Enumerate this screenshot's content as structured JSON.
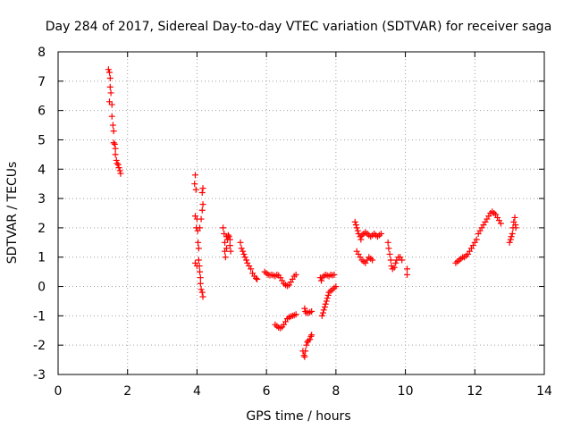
{
  "chart_data": {
    "type": "scatter",
    "title": "Day 284 of 2017, Sidereal Day-to-day VTEC variation (SDTVAR) for receiver saga",
    "xlabel": "GPS time / hours",
    "ylabel": "SDTVAR / TECUs",
    "xlim": [
      0,
      14
    ],
    "ylim": [
      -3,
      8
    ],
    "xticks": [
      0,
      2,
      4,
      6,
      8,
      10,
      12,
      14
    ],
    "yticks": [
      -3,
      -2,
      -1,
      0,
      1,
      2,
      3,
      4,
      5,
      6,
      7,
      8
    ],
    "grid": true,
    "marker": "+",
    "color": "#ff0000",
    "segments": [
      [
        [
          1.45,
          7.4
        ],
        [
          1.48,
          7.3
        ],
        [
          1.5,
          7.1
        ],
        [
          1.5,
          6.8
        ],
        [
          1.52,
          6.6
        ],
        [
          1.48,
          6.3
        ],
        [
          1.55,
          6.2
        ],
        [
          1.55,
          5.8
        ],
        [
          1.58,
          5.5
        ],
        [
          1.6,
          5.3
        ],
        [
          1.6,
          4.9
        ],
        [
          1.63,
          4.85
        ],
        [
          1.65,
          4.7
        ],
        [
          1.65,
          4.5
        ],
        [
          1.68,
          4.3
        ],
        [
          1.7,
          4.2
        ],
        [
          1.73,
          4.15
        ],
        [
          1.75,
          4.05
        ],
        [
          1.78,
          3.95
        ],
        [
          1.8,
          3.85
        ]
      ],
      [
        [
          3.95,
          3.8
        ],
        [
          3.93,
          3.5
        ],
        [
          3.97,
          3.3
        ],
        [
          3.95,
          2.4
        ],
        [
          4.0,
          2.3
        ],
        [
          3.98,
          2.0
        ],
        [
          4.02,
          1.9
        ],
        [
          4.03,
          1.5
        ],
        [
          4.05,
          1.3
        ],
        [
          3.95,
          0.8
        ],
        [
          4.0,
          0.7
        ],
        [
          4.05,
          0.9
        ],
        [
          4.07,
          0.7
        ],
        [
          4.08,
          0.5
        ],
        [
          4.1,
          0.3
        ],
        [
          4.1,
          0.1
        ],
        [
          4.12,
          -0.1
        ],
        [
          4.15,
          -0.2
        ],
        [
          4.17,
          -0.35
        ],
        [
          4.08,
          2.0
        ],
        [
          4.12,
          2.3
        ],
        [
          4.15,
          2.6
        ],
        [
          4.17,
          2.8
        ],
        [
          4.15,
          3.2
        ],
        [
          4.17,
          3.35
        ]
      ],
      [
        [
          4.75,
          2.0
        ],
        [
          4.78,
          1.8
        ],
        [
          4.8,
          1.5
        ],
        [
          4.8,
          1.2
        ],
        [
          4.82,
          1.0
        ],
        [
          4.85,
          1.7
        ],
        [
          4.88,
          1.6
        ],
        [
          4.9,
          1.75
        ],
        [
          4.92,
          1.7
        ],
        [
          4.95,
          1.6
        ],
        [
          4.95,
          1.4
        ],
        [
          4.97,
          1.2
        ],
        [
          4.85,
          1.3
        ]
      ],
      [
        [
          5.25,
          1.5
        ],
        [
          5.28,
          1.3
        ],
        [
          5.32,
          1.2
        ],
        [
          5.35,
          1.1
        ],
        [
          5.38,
          1.0
        ],
        [
          5.42,
          0.9
        ],
        [
          5.45,
          0.8
        ],
        [
          5.5,
          0.7
        ],
        [
          5.55,
          0.6
        ],
        [
          5.6,
          0.45
        ],
        [
          5.65,
          0.35
        ],
        [
          5.7,
          0.28
        ],
        [
          5.73,
          0.25
        ]
      ],
      [
        [
          5.95,
          0.5
        ],
        [
          6.0,
          0.45
        ],
        [
          6.05,
          0.4
        ],
        [
          6.1,
          0.38
        ],
        [
          6.15,
          0.4
        ],
        [
          6.2,
          0.38
        ],
        [
          6.25,
          0.35
        ],
        [
          6.3,
          0.4
        ],
        [
          6.35,
          0.38
        ],
        [
          6.4,
          0.3
        ],
        [
          6.45,
          0.2
        ],
        [
          6.5,
          0.1
        ],
        [
          6.55,
          0.05
        ],
        [
          6.6,
          0.02
        ],
        [
          6.65,
          0.05
        ],
        [
          6.7,
          0.15
        ],
        [
          6.75,
          0.25
        ],
        [
          6.8,
          0.35
        ],
        [
          6.85,
          0.4
        ]
      ],
      [
        [
          6.25,
          -1.3
        ],
        [
          6.3,
          -1.35
        ],
        [
          6.35,
          -1.4
        ],
        [
          6.4,
          -1.42
        ],
        [
          6.45,
          -1.38
        ],
        [
          6.5,
          -1.3
        ],
        [
          6.55,
          -1.2
        ],
        [
          6.6,
          -1.1
        ],
        [
          6.65,
          -1.05
        ],
        [
          6.7,
          -1.02
        ],
        [
          6.75,
          -1.0
        ],
        [
          6.8,
          -0.98
        ],
        [
          6.85,
          -0.95
        ]
      ],
      [
        [
          7.05,
          -2.2
        ],
        [
          7.08,
          -2.35
        ],
        [
          7.1,
          -2.4
        ],
        [
          7.12,
          -2.2
        ],
        [
          7.15,
          -2.0
        ],
        [
          7.18,
          -1.9
        ],
        [
          7.2,
          -1.85
        ],
        [
          7.25,
          -1.8
        ],
        [
          7.28,
          -1.7
        ],
        [
          7.3,
          -1.65
        ],
        [
          7.1,
          -0.75
        ],
        [
          7.12,
          -0.85
        ],
        [
          7.15,
          -0.9
        ],
        [
          7.2,
          -0.9
        ],
        [
          7.25,
          -0.88
        ],
        [
          7.3,
          -0.85
        ]
      ],
      [
        [
          7.55,
          0.3
        ],
        [
          7.58,
          0.2
        ],
        [
          7.6,
          0.3
        ],
        [
          7.65,
          0.35
        ],
        [
          7.7,
          0.4
        ],
        [
          7.75,
          0.38
        ],
        [
          7.8,
          0.35
        ],
        [
          7.85,
          0.4
        ],
        [
          7.9,
          0.38
        ],
        [
          7.95,
          0.4
        ],
        [
          7.6,
          -1.0
        ],
        [
          7.63,
          -0.9
        ],
        [
          7.65,
          -0.8
        ],
        [
          7.68,
          -0.7
        ],
        [
          7.7,
          -0.6
        ],
        [
          7.73,
          -0.5
        ],
        [
          7.75,
          -0.4
        ],
        [
          7.78,
          -0.3
        ],
        [
          7.8,
          -0.2
        ],
        [
          7.85,
          -0.15
        ],
        [
          7.9,
          -0.1
        ],
        [
          7.95,
          -0.05
        ],
        [
          8.0,
          0.0
        ]
      ],
      [
        [
          8.55,
          2.2
        ],
        [
          8.58,
          2.1
        ],
        [
          8.6,
          2.0
        ],
        [
          8.63,
          1.9
        ],
        [
          8.65,
          1.8
        ],
        [
          8.7,
          1.7
        ],
        [
          8.72,
          1.6
        ],
        [
          8.75,
          1.75
        ],
        [
          8.8,
          1.8
        ],
        [
          8.85,
          1.85
        ],
        [
          8.9,
          1.8
        ],
        [
          8.95,
          1.75
        ],
        [
          9.0,
          1.7
        ],
        [
          9.05,
          1.75
        ],
        [
          9.1,
          1.8
        ],
        [
          9.15,
          1.75
        ],
        [
          9.2,
          1.7
        ],
        [
          9.25,
          1.75
        ],
        [
          9.3,
          1.8
        ],
        [
          8.6,
          1.2
        ],
        [
          8.65,
          1.1
        ],
        [
          8.7,
          1.0
        ],
        [
          8.75,
          0.9
        ],
        [
          8.8,
          0.85
        ],
        [
          8.85,
          0.8
        ],
        [
          8.9,
          0.9
        ],
        [
          8.95,
          1.0
        ],
        [
          9.0,
          0.95
        ],
        [
          9.05,
          0.9
        ]
      ],
      [
        [
          9.5,
          1.5
        ],
        [
          9.52,
          1.3
        ],
        [
          9.55,
          1.1
        ],
        [
          9.58,
          0.9
        ],
        [
          9.6,
          0.7
        ],
        [
          9.63,
          0.6
        ],
        [
          9.68,
          0.65
        ],
        [
          9.72,
          0.8
        ],
        [
          9.75,
          0.9
        ],
        [
          9.8,
          1.0
        ],
        [
          9.85,
          1.0
        ],
        [
          9.9,
          0.9
        ]
      ],
      [
        [
          10.05,
          0.6
        ],
        [
          10.05,
          0.4
        ]
      ],
      [
        [
          11.45,
          0.8
        ],
        [
          11.5,
          0.85
        ],
        [
          11.55,
          0.9
        ],
        [
          11.6,
          0.95
        ],
        [
          11.65,
          1.0
        ],
        [
          11.7,
          1.0
        ],
        [
          11.75,
          1.05
        ],
        [
          11.8,
          1.1
        ],
        [
          11.85,
          1.2
        ],
        [
          11.9,
          1.3
        ],
        [
          11.95,
          1.4
        ],
        [
          12.0,
          1.5
        ],
        [
          12.05,
          1.6
        ],
        [
          12.1,
          1.8
        ],
        [
          12.15,
          1.9
        ],
        [
          12.2,
          2.0
        ],
        [
          12.25,
          2.1
        ],
        [
          12.3,
          2.2
        ],
        [
          12.35,
          2.3
        ],
        [
          12.4,
          2.4
        ],
        [
          12.45,
          2.5
        ],
        [
          12.5,
          2.55
        ],
        [
          12.55,
          2.5
        ],
        [
          12.6,
          2.45
        ],
        [
          12.65,
          2.35
        ],
        [
          12.7,
          2.25
        ],
        [
          12.75,
          2.15
        ]
      ],
      [
        [
          13.0,
          1.5
        ],
        [
          13.03,
          1.6
        ],
        [
          13.05,
          1.7
        ],
        [
          13.08,
          1.8
        ],
        [
          13.1,
          2.0
        ],
        [
          13.12,
          2.2
        ],
        [
          13.15,
          2.35
        ],
        [
          13.17,
          2.1
        ],
        [
          13.18,
          2.0
        ]
      ]
    ]
  }
}
